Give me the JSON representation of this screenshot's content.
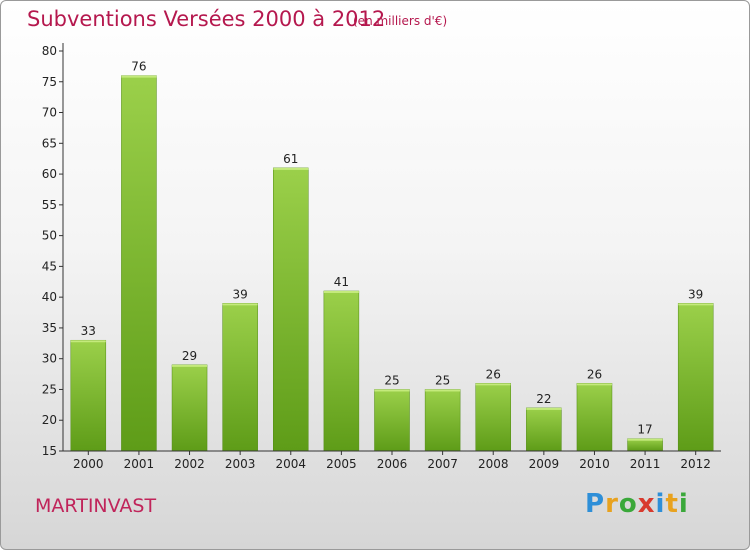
{
  "header": {
    "title": "Subventions Versées 2000 à 2012",
    "subtitle": "(en milliers d'€)"
  },
  "footer": {
    "commune": "MARTINVAST",
    "logo_text": "Proxiti"
  },
  "chart_data": {
    "type": "bar",
    "title": "Subventions Versées 2000 à 2012",
    "subtitle": "(en milliers d'€)",
    "categories": [
      "2000",
      "2001",
      "2002",
      "2003",
      "2004",
      "2005",
      "2006",
      "2007",
      "2008",
      "2009",
      "2010",
      "2011",
      "2012"
    ],
    "values": [
      33,
      76,
      29,
      39,
      61,
      41,
      25,
      25,
      26,
      22,
      26,
      17,
      39
    ],
    "ylim": [
      15,
      80
    ],
    "yticks": [
      15,
      20,
      25,
      30,
      35,
      40,
      45,
      50,
      55,
      60,
      65,
      70,
      75,
      80
    ],
    "grid": false,
    "colors": {
      "bar_light": "#9bd04a",
      "bar_dark": "#5e9c18",
      "axis": "#333333"
    }
  }
}
